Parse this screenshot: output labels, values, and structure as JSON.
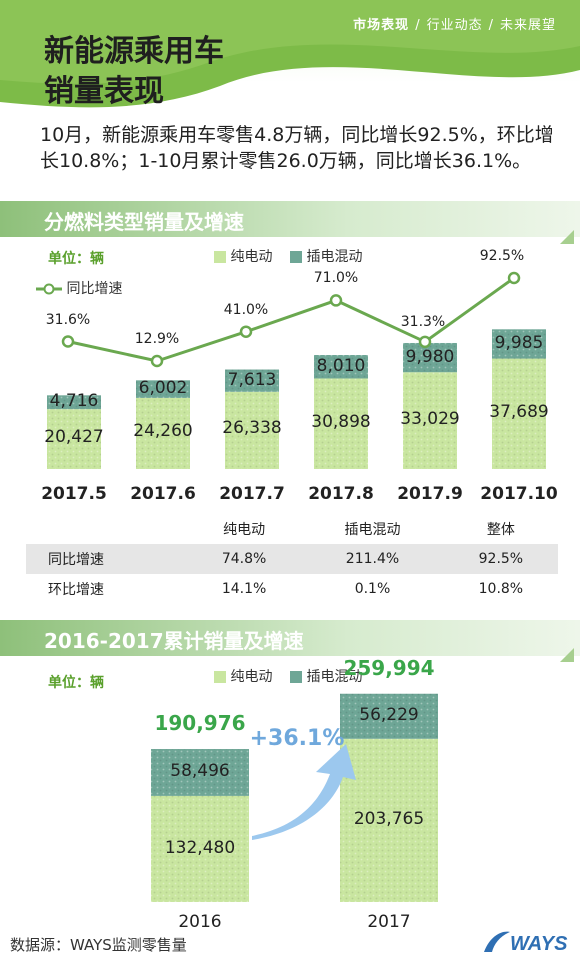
{
  "header": {
    "nav": [
      "市场表现",
      "行业动态",
      "未来展望"
    ],
    "nav_sep": "/",
    "title_line1": "新能源乘用车",
    "title_line2": "销量表现"
  },
  "intro": "10月，新能源乘用车零售4.8万辆，同比增长92.5%，环比增长10.8%；1-10月累计零售26.0万辆，同比增长36.1%。",
  "section1": {
    "title": "分燃料类型销量及增速",
    "unit": "单位：辆",
    "legend_bev": "纯电动",
    "legend_phev": "插电混动",
    "legend_yoy": "同比增速"
  },
  "section2": {
    "title": "2016-2017累计销量及增速",
    "unit": "单位：辆",
    "legend_bev": "纯电动",
    "legend_phev": "插电混动"
  },
  "table": {
    "headers": [
      "",
      "纯电动",
      "插电混动",
      "整体"
    ],
    "rows": [
      [
        "同比增速",
        "74.8%",
        "211.4%",
        "92.5%"
      ],
      [
        "环比增速",
        "14.1%",
        "0.1%",
        "10.8%"
      ]
    ]
  },
  "footer": {
    "source": "数据源：WAYS监测零售量",
    "logo_text": "WAYS"
  },
  "colors": {
    "bev": "#c9e6a0",
    "phev": "#6ea696",
    "line": "#6aa84f",
    "accent_green": "#3aa64a",
    "accent_blue": "#6fa8dc"
  },
  "chart_data": [
    {
      "type": "bar",
      "stacked": true,
      "categories": [
        "2017.5",
        "2017.6",
        "2017.7",
        "2017.8",
        "2017.9",
        "2017.10"
      ],
      "series": [
        {
          "name": "纯电动",
          "values": [
            20427,
            24260,
            26338,
            30898,
            33029,
            37689
          ],
          "labels": [
            "20,427",
            "24,260",
            "26,338",
            "30,898",
            "33,029",
            "37,689"
          ]
        },
        {
          "name": "插电混动",
          "values": [
            4716,
            6002,
            7613,
            8010,
            9980,
            9985
          ],
          "labels": [
            "4,716",
            "6,002",
            "7,613",
            "8,010",
            "9,980",
            "9,985"
          ]
        }
      ],
      "line": {
        "name": "同比增速",
        "values": [
          31.6,
          12.9,
          41.0,
          71.0,
          31.3,
          92.5
        ],
        "labels": [
          "31.6%",
          "12.9%",
          "41.0%",
          "71.0%",
          "31.3%",
          "92.5%"
        ]
      },
      "grid": false,
      "legend": "top"
    },
    {
      "type": "bar",
      "stacked": true,
      "categories": [
        "2016",
        "2017"
      ],
      "series": [
        {
          "name": "纯电动",
          "values": [
            132480,
            203765
          ],
          "labels": [
            "132,480",
            "203,765"
          ]
        },
        {
          "name": "插电混动",
          "values": [
            58496,
            56229
          ],
          "labels": [
            "58,496",
            "56,229"
          ]
        }
      ],
      "totals": [
        190976,
        259994
      ],
      "total_labels": [
        "190,976",
        "259,994"
      ],
      "growth_label": "+36.1%",
      "grid": false,
      "legend": "top"
    }
  ]
}
